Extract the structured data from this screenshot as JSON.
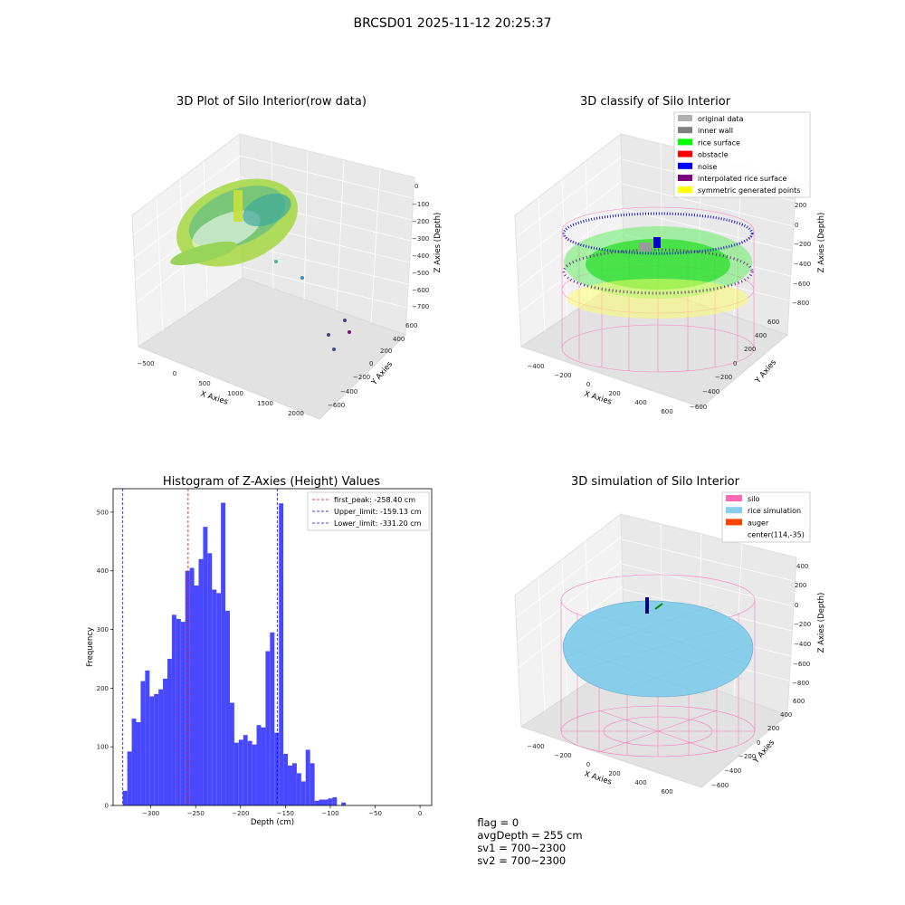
{
  "figure": {
    "title": "BRCSD01 2025-11-12 20:25:37",
    "footer": {
      "flag": "flag = 0",
      "avg_depth": "avgDepth = 255 cm",
      "sv1": "sv1 = 700~2300",
      "sv2": "sv2 = 700~2300"
    }
  },
  "colors": {
    "histogram": "#4848ff",
    "first_peak": "#ff0000",
    "limits": "#0000ff",
    "silo_wire": "#ff69b4",
    "rice_sim": "#87ceeb",
    "auger": "#ff4500"
  },
  "panels": {
    "raw": {
      "title": "3D Plot of Silo Interior(row data)",
      "xlabel": "X Axies",
      "ylabel": "Y Axies",
      "zlabel": "Z Axies (Depth)",
      "xticks": [
        "−500",
        "0",
        "500",
        "1000",
        "1500",
        "2000"
      ],
      "yticks": [
        "600",
        "400",
        "200",
        "0",
        "−200",
        "−400",
        "−600"
      ],
      "zticks": [
        "0",
        "−100",
        "−200",
        "−300",
        "−400",
        "−500",
        "−600",
        "−700"
      ]
    },
    "classify": {
      "title": "3D classify of Silo Interior",
      "xlabel": "X Axies",
      "ylabel": "Y Axies",
      "zlabel": "Z Axies (Depth)",
      "xticks": [
        "−400",
        "−200",
        "0",
        "200",
        "400",
        "600"
      ],
      "yticks": [
        "600",
        "400",
        "200",
        "0",
        "−200",
        "−400",
        "−600"
      ],
      "zticks": [
        "400",
        "200",
        "0",
        "−200",
        "−400",
        "−600",
        "−800"
      ],
      "legend": [
        {
          "label": "original data",
          "color": "#b0b0b0"
        },
        {
          "label": "inner wall",
          "color": "#808080"
        },
        {
          "label": "rice surface",
          "color": "#00ff00"
        },
        {
          "label": "obstacle",
          "color": "#ff0000"
        },
        {
          "label": "noise",
          "color": "#0000ff"
        },
        {
          "label": "interpolated rice surface",
          "color": "#800080"
        },
        {
          "label": "symmetric generated points",
          "color": "#ffff00"
        }
      ]
    },
    "simulation": {
      "title": "3D simulation of Silo Interior",
      "xlabel": "X Axies",
      "ylabel": "Y Axies",
      "zlabel": "Z Axies (Depth)",
      "xticks": [
        "−400",
        "−200",
        "0",
        "200",
        "400",
        "600"
      ],
      "yticks": [
        "600",
        "400",
        "200",
        "0",
        "−200",
        "−400",
        "−600"
      ],
      "zticks": [
        "400",
        "200",
        "0",
        "−200",
        "−400",
        "−600",
        "−800"
      ],
      "legend": [
        {
          "label": "silo",
          "color": "#ff69b4"
        },
        {
          "label": "rice simulation",
          "color": "#87ceeb"
        },
        {
          "label": "auger",
          "color": "#ff4500"
        },
        {
          "label": "center(114,-35)",
          "color": ""
        }
      ]
    }
  },
  "chart_data": {
    "type": "bar",
    "title": "Histogram of Z-Axies (Height) Values",
    "xlabel": "Depth (cm)",
    "ylabel": "Frequency",
    "xlim": [
      -342,
      13
    ],
    "ylim": [
      0,
      540
    ],
    "xticks": [
      -300,
      -250,
      -200,
      -150,
      -100,
      -50,
      0
    ],
    "xtick_labels": [
      "−300",
      "−250",
      "−200",
      "−150",
      "−100",
      "−50",
      "0"
    ],
    "yticks": [
      0,
      100,
      200,
      300,
      400,
      500
    ],
    "bin_start": -331.2,
    "bin_width": 4.97,
    "values": [
      25,
      92,
      148,
      142,
      212,
      230,
      186,
      190,
      198,
      216,
      250,
      325,
      318,
      313,
      400,
      405,
      375,
      420,
      475,
      430,
      368,
      362,
      516,
      332,
      175,
      107,
      112,
      120,
      110,
      104,
      137,
      133,
      263,
      295,
      124,
      515,
      88,
      68,
      72,
      55,
      41,
      95,
      72,
      8,
      10,
      10,
      12,
      14,
      0,
      5
    ],
    "legend": [
      {
        "label": "first_peak: -258.40 cm",
        "value": -258.4,
        "color": "#ff0000"
      },
      {
        "label": "Upper_limit: -159.13 cm",
        "value": -159.13,
        "color": "#0000ff"
      },
      {
        "label": "Lower_limit: -331.20 cm",
        "value": -331.2,
        "color": "#0000ff"
      }
    ]
  }
}
